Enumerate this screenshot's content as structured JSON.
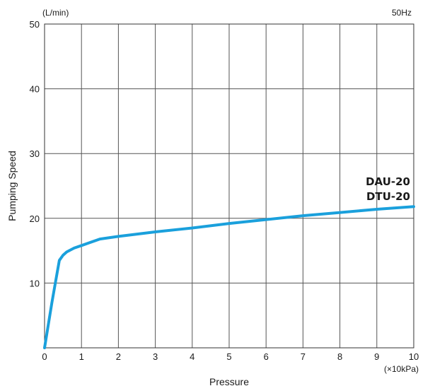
{
  "chart_data": {
    "type": "line",
    "title": "",
    "xlabel": "Pressure",
    "ylabel": "Pumping Speed",
    "x_unit": "(×10kPa)",
    "y_unit": "(L/min)",
    "frequency_note": "50Hz",
    "xlim": [
      0,
      10
    ],
    "ylim": [
      0,
      50
    ],
    "x_ticks": [
      0,
      1,
      2,
      3,
      4,
      5,
      6,
      7,
      8,
      9,
      10
    ],
    "y_ticks": [
      10,
      20,
      30,
      40,
      50
    ],
    "grid": true,
    "series_labels": [
      "DAU-20",
      "DTU-20"
    ],
    "series": [
      {
        "color": "#1aa0dc",
        "x": [
          0,
          0.1,
          0.2,
          0.3,
          0.4,
          0.5,
          0.6,
          0.8,
          1.0,
          1.2,
          1.5,
          2,
          3,
          4,
          5,
          6,
          7,
          8,
          9,
          10
        ],
        "y": [
          0,
          3.5,
          7,
          10.3,
          13.5,
          14.3,
          14.8,
          15.4,
          15.8,
          16.2,
          16.8,
          17.2,
          17.9,
          18.5,
          19.2,
          19.8,
          20.4,
          20.9,
          21.4,
          21.8
        ]
      }
    ]
  }
}
